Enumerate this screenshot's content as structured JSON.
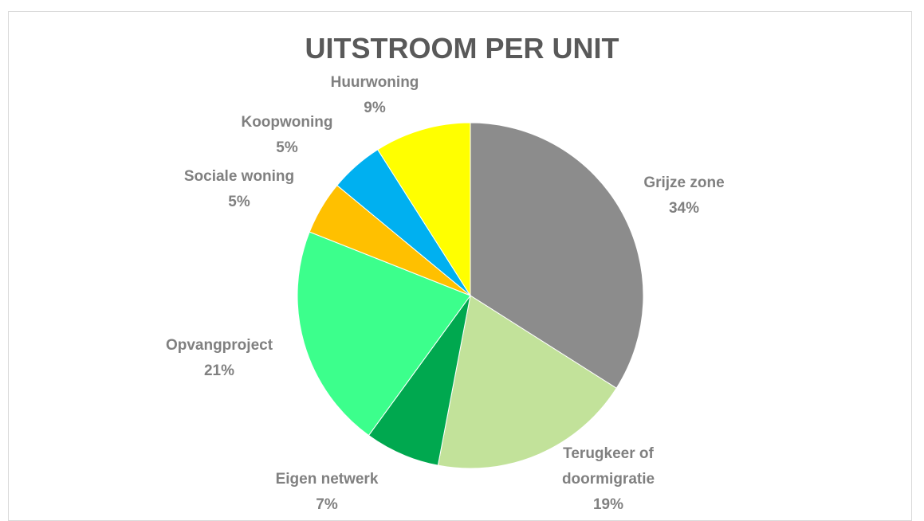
{
  "chart_data": {
    "type": "pie",
    "title": "UITSTROOM PER UNIT",
    "categories": [
      "Grijze zone",
      "Terugkeer of doormigratie",
      "Eigen netwerk",
      "Opvangproject",
      "Sociale woning",
      "Koopwoning",
      "Huurwoning"
    ],
    "values": [
      34,
      19,
      7,
      21,
      5,
      5,
      9
    ],
    "value_labels": [
      "34%",
      "19%",
      "7%",
      "21%",
      "5%",
      "5%",
      "9%"
    ],
    "colors": [
      "#8c8c8c",
      "#c2e29a",
      "#00a84f",
      "#3cff8c",
      "#ffc000",
      "#00b0f0",
      "#ffff00"
    ]
  }
}
